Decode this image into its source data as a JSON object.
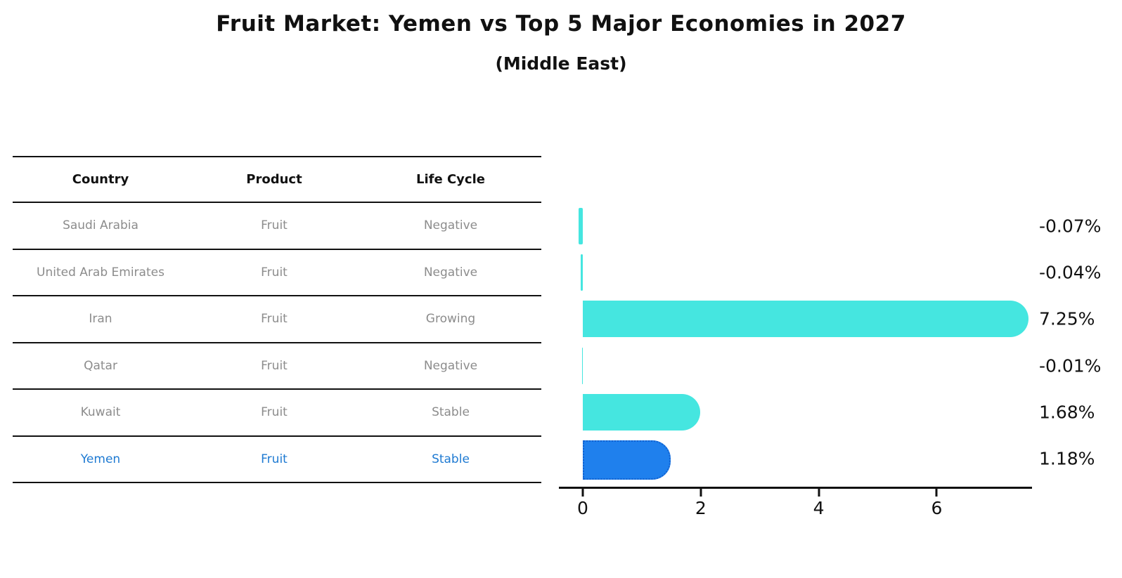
{
  "title": "Fruit Market: Yemen vs Top 5 Major Economies in 2027",
  "subtitle": "(Middle East)",
  "table": {
    "headers": [
      "Country",
      "Product",
      "Life Cycle"
    ],
    "rows": [
      {
        "country": "Saudi Arabia",
        "product": "Fruit",
        "life_cycle": "Negative",
        "highlight": false
      },
      {
        "country": "United Arab Emirates",
        "product": "Fruit",
        "life_cycle": "Negative",
        "highlight": false
      },
      {
        "country": "Iran",
        "product": "Fruit",
        "life_cycle": "Growing",
        "highlight": false
      },
      {
        "country": "Qatar",
        "product": "Fruit",
        "life_cycle": "Negative",
        "highlight": false
      },
      {
        "country": "Kuwait",
        "product": "Fruit",
        "life_cycle": "Stable",
        "highlight": false
      },
      {
        "country": "Yemen",
        "product": "Fruit",
        "life_cycle": "Stable",
        "highlight": true
      }
    ]
  },
  "chart_data": {
    "type": "bar",
    "orientation": "horizontal",
    "categories": [
      "Saudi Arabia",
      "United Arab Emirates",
      "Iran",
      "Qatar",
      "Kuwait",
      "Yemen"
    ],
    "values": [
      -0.07,
      -0.04,
      7.25,
      -0.01,
      1.68,
      1.18
    ],
    "value_labels": [
      "-0.07%",
      "-0.04%",
      "7.25%",
      "-0.01%",
      "1.68%",
      "1.18%"
    ],
    "x_ticks": [
      "0",
      "2",
      "4",
      "6"
    ],
    "x_tick_values": [
      0,
      2,
      4,
      6
    ],
    "xlim": [
      -0.41,
      7.62
    ],
    "grid": false,
    "legend": "none",
    "bar_color": "#45e6e0",
    "highlight_color": "#1f80ed",
    "highlight_border_color": "#1261cf",
    "highlight_text_color": "#1e7ad2",
    "highlight_index": 5
  }
}
